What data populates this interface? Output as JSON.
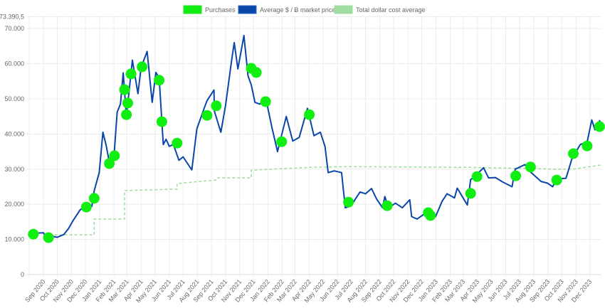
{
  "chart_data": {
    "type": "line",
    "title": "",
    "xlabel": "",
    "ylabel": "",
    "ylim": [
      0,
      73390.5
    ],
    "y_ticks": [
      {
        "value": 0,
        "label": "0"
      },
      {
        "value": 10000,
        "label": "10.000"
      },
      {
        "value": 20000,
        "label": "20.000"
      },
      {
        "value": 30000,
        "label": "30.000"
      },
      {
        "value": 40000,
        "label": "40.000"
      },
      {
        "value": 50000,
        "label": "50.000"
      },
      {
        "value": 60000,
        "label": "60.000"
      },
      {
        "value": 70000,
        "label": "70.000"
      },
      {
        "value": 73390.5,
        "label": "73.390,5"
      }
    ],
    "x_ticks": [
      {
        "date": "2020-09-01",
        "label": "Sep 2020"
      },
      {
        "date": "2020-10-01",
        "label": "Oct 2020"
      },
      {
        "date": "2020-11-01",
        "label": "Nov 2020"
      },
      {
        "date": "2020-12-01",
        "label": "Dec 2020"
      },
      {
        "date": "2021-01-01",
        "label": "Jan 2021"
      },
      {
        "date": "2021-02-01",
        "label": "Feb 2021"
      },
      {
        "date": "2021-03-01",
        "label": "Mar 2021"
      },
      {
        "date": "2021-04-01",
        "label": "Apr 2021"
      },
      {
        "date": "2021-05-01",
        "label": "May 2021"
      },
      {
        "date": "2021-06-01",
        "label": "Jun 2021"
      },
      {
        "date": "2021-07-01",
        "label": "Jul 2021"
      },
      {
        "date": "2021-08-01",
        "label": "Aug 2021"
      },
      {
        "date": "2021-09-01",
        "label": "Sep 2021"
      },
      {
        "date": "2021-10-01",
        "label": "Oct 2021"
      },
      {
        "date": "2021-11-01",
        "label": "Nov 2021"
      },
      {
        "date": "2021-12-01",
        "label": "Dec 2021"
      },
      {
        "date": "2022-01-01",
        "label": "Jan 2022"
      },
      {
        "date": "2022-02-01",
        "label": "Feb 2022"
      },
      {
        "date": "2022-03-01",
        "label": "Mar 2022"
      },
      {
        "date": "2022-04-01",
        "label": "Apr 2022"
      },
      {
        "date": "2022-05-01",
        "label": "May 2022"
      },
      {
        "date": "2022-06-01",
        "label": "Jun 2022"
      },
      {
        "date": "2022-07-01",
        "label": "Jul 2022"
      },
      {
        "date": "2022-08-01",
        "label": "Aug 2022"
      },
      {
        "date": "2022-09-01",
        "label": "Sep 2022"
      },
      {
        "date": "2022-10-01",
        "label": "Oct 2022"
      },
      {
        "date": "2022-11-01",
        "label": "Nov 2022"
      },
      {
        "date": "2022-12-01",
        "label": "Dec 2022"
      },
      {
        "date": "2023-01-01",
        "label": "Jan 2023"
      },
      {
        "date": "2023-02-01",
        "label": "Feb 2023"
      },
      {
        "date": "2023-03-01",
        "label": "Mar 2023"
      },
      {
        "date": "2023-04-01",
        "label": "Apr 2023"
      },
      {
        "date": "2023-05-01",
        "label": "May 2023"
      },
      {
        "date": "2023-06-01",
        "label": "Jun 2023"
      },
      {
        "date": "2023-07-01",
        "label": "Jul 2023"
      },
      {
        "date": "2023-08-01",
        "label": "Aug 2023"
      },
      {
        "date": "2023-09-01",
        "label": "Sep 2023"
      },
      {
        "date": "2023-10-01",
        "label": "Oct 2023"
      },
      {
        "date": "2023-11-01",
        "label": "Nov 2023"
      },
      {
        "date": "2023-12-01",
        "label": "Dec 2023"
      }
    ],
    "x_range": [
      "2020-08-01",
      "2023-12-26"
    ],
    "grid": true,
    "legend": {
      "placement": "top",
      "entries": [
        {
          "label": "Purchases",
          "color": "#11ee11",
          "border": "#22dd22"
        },
        {
          "label": "Average $ / Ƀ market price",
          "color": "#0a46aa",
          "border": "#2a66c8"
        },
        {
          "label": "Total dollar cost average",
          "color": "#9fdc9f",
          "border": "#9fdc9f"
        }
      ]
    },
    "series": [
      {
        "name": "Average $ / Ƀ market price",
        "type": "line",
        "color": "#0a46aa",
        "points": [
          [
            "2020-08-01",
            11300
          ],
          [
            "2020-08-15",
            11800
          ],
          [
            "2020-09-01",
            11900
          ],
          [
            "2020-09-08",
            10200
          ],
          [
            "2020-09-20",
            10900
          ],
          [
            "2020-10-01",
            10600
          ],
          [
            "2020-10-15",
            11400
          ],
          [
            "2020-10-25",
            13000
          ],
          [
            "2020-11-05",
            15500
          ],
          [
            "2020-11-20",
            18500
          ],
          [
            "2020-12-01",
            19000
          ],
          [
            "2020-12-15",
            19400
          ],
          [
            "2020-12-20",
            23800
          ],
          [
            "2020-12-31",
            29000
          ],
          [
            "2021-01-08",
            40500
          ],
          [
            "2021-01-15",
            36800
          ],
          [
            "2021-01-22",
            32000
          ],
          [
            "2021-02-01",
            33500
          ],
          [
            "2021-02-08",
            46200
          ],
          [
            "2021-02-15",
            48500
          ],
          [
            "2021-02-21",
            57400
          ],
          [
            "2021-02-28",
            45000
          ],
          [
            "2021-03-13",
            61000
          ],
          [
            "2021-03-25",
            51500
          ],
          [
            "2021-04-01",
            59000
          ],
          [
            "2021-04-14",
            63500
          ],
          [
            "2021-04-25",
            49000
          ],
          [
            "2021-05-03",
            57500
          ],
          [
            "2021-05-10",
            56000
          ],
          [
            "2021-05-19",
            37000
          ],
          [
            "2021-05-25",
            38500
          ],
          [
            "2021-06-01",
            36500
          ],
          [
            "2021-06-10",
            37000
          ],
          [
            "2021-06-22",
            32500
          ],
          [
            "2021-07-01",
            33500
          ],
          [
            "2021-07-20",
            29800
          ],
          [
            "2021-07-31",
            41500
          ],
          [
            "2021-08-15",
            47000
          ],
          [
            "2021-08-22",
            49500
          ],
          [
            "2021-09-06",
            52500
          ],
          [
            "2021-09-07",
            46500
          ],
          [
            "2021-09-21",
            40500
          ],
          [
            "2021-10-01",
            48000
          ],
          [
            "2021-10-15",
            61500
          ],
          [
            "2021-10-20",
            66000
          ],
          [
            "2021-10-28",
            58500
          ],
          [
            "2021-11-10",
            68000
          ],
          [
            "2021-11-19",
            56500
          ],
          [
            "2021-11-26",
            54000
          ],
          [
            "2021-12-04",
            49000
          ],
          [
            "2021-12-15",
            48500
          ],
          [
            "2021-12-27",
            50500
          ],
          [
            "2022-01-10",
            41800
          ],
          [
            "2022-01-22",
            35000
          ],
          [
            "2022-02-10",
            45000
          ],
          [
            "2022-02-24",
            38000
          ],
          [
            "2022-03-10",
            39000
          ],
          [
            "2022-03-28",
            47300
          ],
          [
            "2022-04-11",
            39500
          ],
          [
            "2022-04-25",
            40500
          ],
          [
            "2022-05-05",
            36500
          ],
          [
            "2022-05-12",
            29000
          ],
          [
            "2022-05-25",
            29500
          ],
          [
            "2022-06-10",
            29000
          ],
          [
            "2022-06-18",
            19000
          ],
          [
            "2022-06-30",
            19500
          ],
          [
            "2022-07-20",
            23500
          ],
          [
            "2022-08-01",
            23000
          ],
          [
            "2022-08-14",
            24500
          ],
          [
            "2022-08-25",
            21500
          ],
          [
            "2022-09-07",
            19000
          ],
          [
            "2022-09-12",
            22200
          ],
          [
            "2022-09-20",
            19000
          ],
          [
            "2022-10-05",
            20300
          ],
          [
            "2022-10-20",
            19000
          ],
          [
            "2022-11-05",
            21300
          ],
          [
            "2022-11-09",
            16500
          ],
          [
            "2022-11-21",
            15800
          ],
          [
            "2022-12-05",
            17100
          ],
          [
            "2022-12-20",
            16800
          ],
          [
            "2022-12-31",
            16500
          ],
          [
            "2023-01-14",
            20800
          ],
          [
            "2023-01-25",
            23000
          ],
          [
            "2023-02-10",
            21800
          ],
          [
            "2023-02-16",
            24600
          ],
          [
            "2023-03-10",
            19800
          ],
          [
            "2023-03-17",
            27000
          ],
          [
            "2023-03-31",
            28500
          ],
          [
            "2023-04-14",
            30400
          ],
          [
            "2023-04-25",
            27500
          ],
          [
            "2023-05-10",
            27600
          ],
          [
            "2023-05-25",
            26400
          ],
          [
            "2023-06-15",
            25000
          ],
          [
            "2023-06-22",
            30000
          ],
          [
            "2023-07-13",
            31300
          ],
          [
            "2023-07-25",
            29200
          ],
          [
            "2023-08-17",
            26500
          ],
          [
            "2023-08-31",
            26000
          ],
          [
            "2023-09-11",
            25000
          ],
          [
            "2023-09-20",
            27200
          ],
          [
            "2023-10-10",
            27400
          ],
          [
            "2023-10-23",
            33000
          ],
          [
            "2023-11-01",
            35000
          ],
          [
            "2023-11-10",
            37000
          ],
          [
            "2023-11-25",
            37700
          ],
          [
            "2023-12-05",
            44000
          ],
          [
            "2023-12-12",
            41200
          ],
          [
            "2023-12-18",
            41500
          ],
          [
            "2023-12-22",
            43800
          ],
          [
            "2023-12-26",
            42500
          ]
        ]
      },
      {
        "name": "Total dollar cost average",
        "type": "dashed-line",
        "color": "#9fdc9f",
        "points": [
          [
            "2020-09-25",
            11300
          ],
          [
            "2020-12-20",
            11300
          ],
          [
            "2020-12-20",
            15800
          ],
          [
            "2021-02-24",
            15800
          ],
          [
            "2021-02-24",
            23900
          ],
          [
            "2021-06-18",
            24300
          ],
          [
            "2021-06-18",
            25900
          ],
          [
            "2021-09-11",
            26900
          ],
          [
            "2021-09-13",
            27500
          ],
          [
            "2021-11-26",
            27500
          ],
          [
            "2021-11-26",
            29700
          ],
          [
            "2022-04-01",
            30500
          ],
          [
            "2022-06-25",
            30700
          ],
          [
            "2023-03-17",
            30500
          ],
          [
            "2023-09-20",
            30000
          ],
          [
            "2023-10-26",
            30000
          ],
          [
            "2023-12-26",
            31200
          ]
        ]
      },
      {
        "name": "Purchases",
        "type": "scatter",
        "color": "#11ee11",
        "points": [
          [
            "2020-08-10",
            11500
          ],
          [
            "2020-09-12",
            10500
          ],
          [
            "2020-12-03",
            19200
          ],
          [
            "2020-12-20",
            21700
          ],
          [
            "2021-01-22",
            31600
          ],
          [
            "2021-02-02",
            33800
          ],
          [
            "2021-02-24",
            52600
          ],
          [
            "2021-02-28",
            45500
          ],
          [
            "2021-03-03",
            48800
          ],
          [
            "2021-03-10",
            57100
          ],
          [
            "2021-04-03",
            59100
          ],
          [
            "2021-05-10",
            55300
          ],
          [
            "2021-05-16",
            43500
          ],
          [
            "2021-06-18",
            37400
          ],
          [
            "2021-08-22",
            45300
          ],
          [
            "2021-09-11",
            48000
          ],
          [
            "2021-11-26",
            58700
          ],
          [
            "2021-12-07",
            57500
          ],
          [
            "2021-12-27",
            49200
          ],
          [
            "2022-01-31",
            37800
          ],
          [
            "2022-04-01",
            45500
          ],
          [
            "2022-06-25",
            20600
          ],
          [
            "2022-09-17",
            19600
          ],
          [
            "2022-12-15",
            17600
          ],
          [
            "2022-12-20",
            16800
          ],
          [
            "2023-03-17",
            23100
          ],
          [
            "2023-03-31",
            27900
          ],
          [
            "2023-06-23",
            28100
          ],
          [
            "2023-07-25",
            30600
          ],
          [
            "2023-09-20",
            26900
          ],
          [
            "2023-10-26",
            34400
          ],
          [
            "2023-11-25",
            36600
          ],
          [
            "2023-12-22",
            42100
          ]
        ]
      }
    ]
  }
}
